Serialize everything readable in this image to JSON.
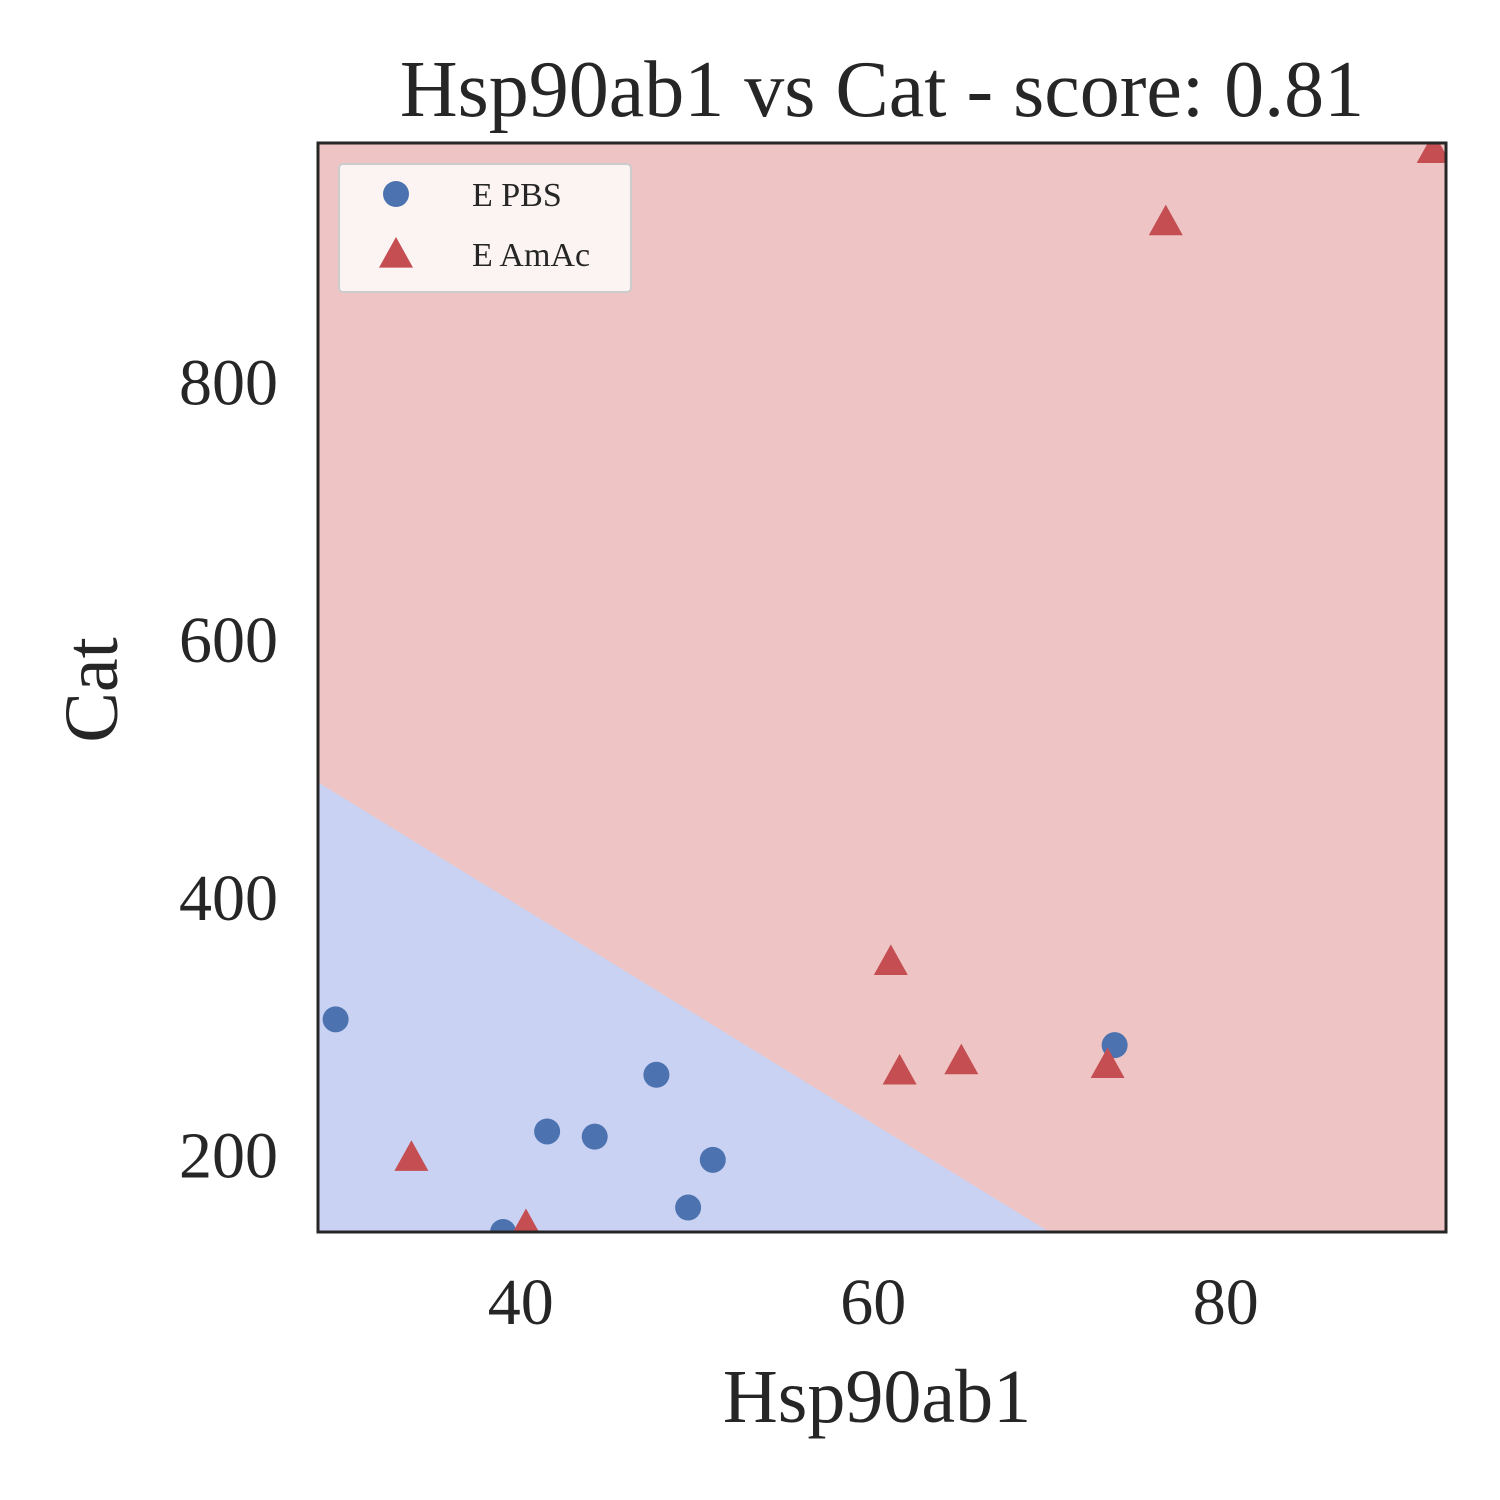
{
  "chart_data": {
    "type": "scatter",
    "title": "Hsp90ab1 vs Cat - score: 0.81",
    "xlabel": "Hsp90ab1",
    "ylabel": "Cat",
    "xlim": [
      28.5,
      92.5
    ],
    "ylim": [
      140,
      985
    ],
    "xticks": [
      40,
      60,
      80
    ],
    "yticks": [
      200,
      400,
      600,
      800
    ],
    "grid": false,
    "legend_position": "top-left",
    "colors": {
      "class_a": "#4c72b0",
      "class_b": "#c44e52",
      "region_a": "#c9d2f2",
      "region_b": "#eec5c4",
      "axes": "#262626"
    },
    "decision_boundary": [
      {
        "x": 28.5,
        "y": 489
      },
      {
        "x": 70.0,
        "y": 140
      }
    ],
    "series": [
      {
        "name": "E PBS",
        "marker": "circle",
        "points": [
          {
            "x": 29.5,
            "y": 305
          },
          {
            "x": 39.0,
            "y": 140
          },
          {
            "x": 41.5,
            "y": 218
          },
          {
            "x": 44.2,
            "y": 214
          },
          {
            "x": 47.7,
            "y": 262
          },
          {
            "x": 49.5,
            "y": 159
          },
          {
            "x": 50.9,
            "y": 196
          },
          {
            "x": 73.7,
            "y": 285
          }
        ]
      },
      {
        "name": "E AmAc",
        "marker": "triangle",
        "points": [
          {
            "x": 33.8,
            "y": 198
          },
          {
            "x": 40.3,
            "y": 145
          },
          {
            "x": 61.0,
            "y": 350
          },
          {
            "x": 61.5,
            "y": 265
          },
          {
            "x": 65.0,
            "y": 273
          },
          {
            "x": 73.3,
            "y": 270
          },
          {
            "x": 76.6,
            "y": 924
          },
          {
            "x": 91.8,
            "y": 980
          }
        ]
      }
    ]
  }
}
